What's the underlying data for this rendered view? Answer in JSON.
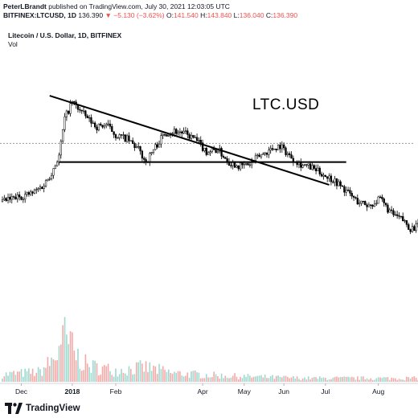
{
  "header": {
    "author": "PeterLBrandt",
    "published_text": "published on TradingView.com, July 30, 2021 12:03:05 UTC",
    "symbol_line": "BITFINEX:LTCUSD, 1D",
    "last": "136.390",
    "change": "−5.130 (−3.62%)",
    "o_label": "O:",
    "o": "141.540",
    "h_label": "H:",
    "h": "143.840",
    "l_label": "L:",
    "l": "136.040",
    "c_label": "C:",
    "c": "136.390"
  },
  "legend": {
    "title": "Litecoin / U.S. Dollar, 1D, BITFINEX",
    "vol": "Vol"
  },
  "annotation": "LTC.USD",
  "footer": {
    "brand": "TradingView"
  },
  "colors": {
    "up": "#26a69a",
    "down": "#ef5350",
    "line": "#000000",
    "dotted": "#9598a1"
  },
  "chart_data": {
    "type": "candlestick",
    "x_tick_labels": [
      "Dec",
      "2018",
      "Feb",
      "Apr",
      "May",
      "Jun",
      "Jul",
      "Aug"
    ],
    "price_path": [
      [
        0,
        0.3
      ],
      [
        8,
        0.32
      ],
      [
        16,
        0.34
      ],
      [
        22,
        0.38
      ],
      [
        26,
        0.44
      ],
      [
        30,
        0.52
      ],
      [
        33,
        0.7
      ],
      [
        37,
        0.78
      ],
      [
        41,
        0.74
      ],
      [
        45,
        0.7
      ],
      [
        50,
        0.66
      ],
      [
        55,
        0.67
      ],
      [
        60,
        0.62
      ],
      [
        66,
        0.6
      ],
      [
        72,
        0.55
      ],
      [
        76,
        0.49
      ],
      [
        80,
        0.55
      ],
      [
        86,
        0.63
      ],
      [
        91,
        0.64
      ],
      [
        96,
        0.63
      ],
      [
        102,
        0.6
      ],
      [
        108,
        0.54
      ],
      [
        114,
        0.55
      ],
      [
        120,
        0.49
      ],
      [
        126,
        0.47
      ],
      [
        131,
        0.48
      ],
      [
        136,
        0.52
      ],
      [
        142,
        0.55
      ],
      [
        147,
        0.57
      ],
      [
        152,
        0.52
      ],
      [
        158,
        0.48
      ],
      [
        164,
        0.46
      ],
      [
        170,
        0.43
      ],
      [
        176,
        0.4
      ],
      [
        182,
        0.35
      ],
      [
        188,
        0.3
      ],
      [
        194,
        0.28
      ],
      [
        200,
        0.31
      ],
      [
        206,
        0.24
      ],
      [
        212,
        0.21
      ],
      [
        216,
        0.17
      ],
      [
        220,
        0.18
      ]
    ],
    "volume_path": [
      [
        0,
        0.1
      ],
      [
        20,
        0.14
      ],
      [
        30,
        0.38
      ],
      [
        33,
        0.62
      ],
      [
        37,
        0.42
      ],
      [
        45,
        0.22
      ],
      [
        60,
        0.16
      ],
      [
        76,
        0.2
      ],
      [
        90,
        0.12
      ],
      [
        120,
        0.08
      ],
      [
        160,
        0.05
      ],
      [
        220,
        0.05
      ]
    ],
    "trendlines": [
      {
        "name": "descending-resistance",
        "from": [
          25,
          0.81
        ],
        "to": [
          173,
          0.38
        ]
      },
      {
        "name": "horizontal-support",
        "from": [
          30,
          0.49
        ],
        "to": [
          182,
          0.49
        ]
      }
    ],
    "last_price_level": 0.58
  }
}
